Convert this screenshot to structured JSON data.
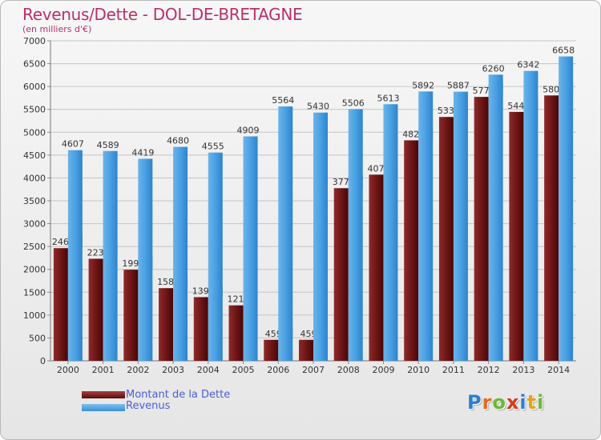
{
  "title": "Revenus/Dette - DOL-DE-BRETAGNE",
  "subtitle": "(en milliers d'€)",
  "legend": {
    "debt": "Montant de la Dette",
    "revenue": "Revenus"
  },
  "logo": {
    "text": "Proxiti",
    "letters": [
      "P",
      "r",
      "o",
      "x",
      "i",
      "t",
      "i"
    ],
    "letter_colors": [
      "#2b7fd4",
      "#e46a1e",
      "#6cb83a",
      "#d83a1e",
      "#2b7fd4",
      "#e4a21e",
      "#6cb83a"
    ]
  },
  "colors": {
    "debt_top": "#a84040",
    "debt_bottom": "#5a0c0c",
    "revenue_top": "#7ec0ec",
    "revenue_bottom": "#2e84cc",
    "title": "#b8306a",
    "legend_text": "#4a5ed8"
  },
  "chart_data": {
    "type": "bar",
    "categories": [
      "2000",
      "2001",
      "2002",
      "2003",
      "2004",
      "2005",
      "2006",
      "2007",
      "2008",
      "2009",
      "2010",
      "2011",
      "2012",
      "2013",
      "2014"
    ],
    "series": [
      {
        "name": "Montant de la Dette",
        "values": [
          2464,
          2232,
          1993,
          1589,
          1393,
          1213,
          459,
          459,
          3776,
          4072,
          4823,
          5334,
          5773,
          5445,
          5805
        ],
        "labels": [
          "2464",
          "2232",
          "1993",
          "1589",
          "1393",
          "1213",
          "459",
          "459",
          "3776",
          "4072",
          "4823",
          "5334",
          "5773",
          "5445",
          "5805"
        ]
      },
      {
        "name": "Revenus",
        "values": [
          4607,
          4589,
          4419,
          4680,
          4555,
          4909,
          5564,
          5430,
          5506,
          5613,
          5892,
          5887,
          6260,
          6342,
          6658
        ],
        "labels": [
          "4607",
          "4589",
          "4419",
          "4680",
          "4555",
          "4909",
          "5564",
          "5430",
          "5506",
          "5613",
          "5892",
          "5887",
          "6260",
          "6342",
          "6658"
        ]
      }
    ],
    "ylim": [
      0,
      7000
    ],
    "yticks": [
      "0",
      "500",
      "1000",
      "1500",
      "2000",
      "2500",
      "3000",
      "3500",
      "4000",
      "4500",
      "5000",
      "5500",
      "6000",
      "6500",
      "7000"
    ],
    "grid": true,
    "legend_position": "bottom-left"
  }
}
